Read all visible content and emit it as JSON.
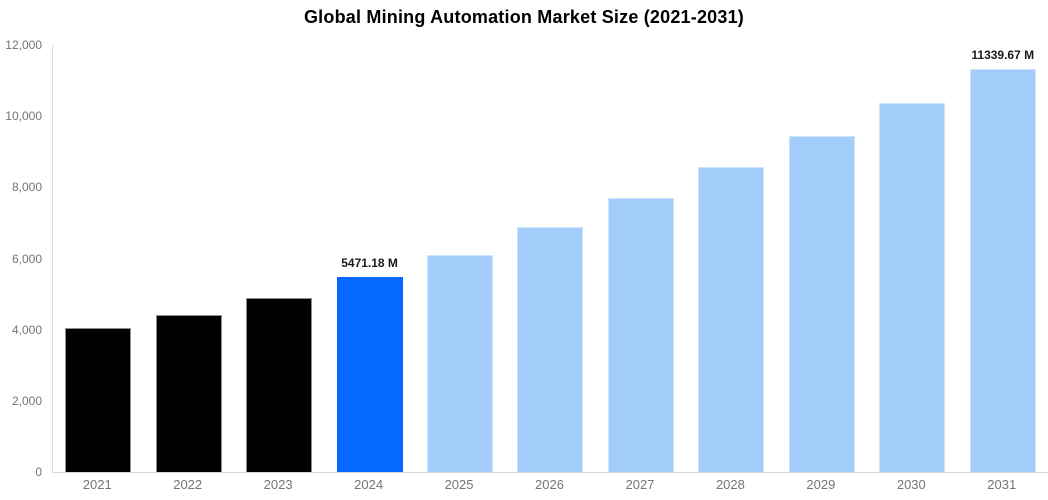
{
  "title": "Global Mining Automation Market Size (2021-2031)",
  "chart_data": {
    "type": "bar",
    "title": "Global Mining Automation Market Size (2021-2031)",
    "categories": [
      "2021",
      "2022",
      "2023",
      "2024",
      "2025",
      "2026",
      "2027",
      "2028",
      "2029",
      "2030",
      "2031"
    ],
    "values": [
      4035,
      4420,
      4890,
      5471.18,
      6110,
      6890,
      7700,
      8570,
      9440,
      10360,
      11339.67
    ],
    "bar_roles": [
      "past",
      "past",
      "past",
      "current",
      "future",
      "future",
      "future",
      "future",
      "future",
      "future",
      "future"
    ],
    "point_labels": [
      "",
      "",
      "",
      "5471.18 M",
      "",
      "",
      "",
      "",
      "",
      "",
      "11339.67 M"
    ],
    "xlabel": "",
    "ylabel": "",
    "ylim": [
      0,
      12000
    ],
    "y_ticks": [
      0,
      2000,
      4000,
      6000,
      8000,
      10000,
      12000
    ],
    "y_tick_labels": [
      "0",
      "2,000",
      "4,000",
      "6,000",
      "8,000",
      "10,000",
      "12,000"
    ],
    "grid": false,
    "legend": false,
    "unit_suffix": "M",
    "colors": {
      "past": {
        "fill": "#000000",
        "border": "#8f8f8f"
      },
      "current": {
        "fill": "#0569ff",
        "border": "#0569ff"
      },
      "future": {
        "fill": "#a2ccfa",
        "border": "#cde4fc"
      }
    },
    "axis_line_color": "#d9d9d9",
    "tick_text_color": "#757575",
    "value_label_color": "#1a1a1a"
  }
}
